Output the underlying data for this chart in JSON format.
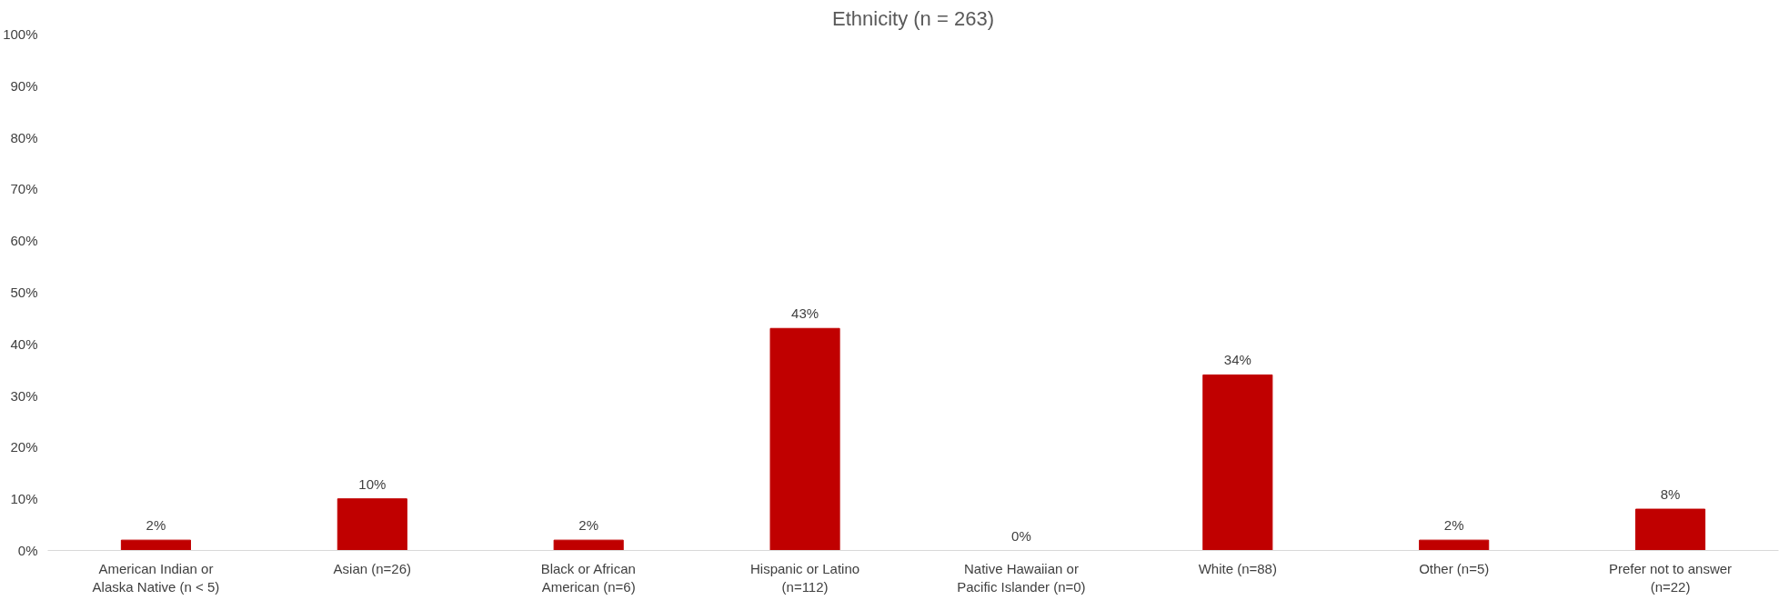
{
  "chart_data": {
    "type": "bar",
    "title": "Ethnicity (n = 263)",
    "categories": [
      "American Indian or Alaska Native (n < 5)",
      "Asian (n=26)",
      "Black or African American (n=6)",
      "Hispanic or Latino (n=112)",
      "Native Hawaiian or Pacific Islander (n=0)",
      "White (n=88)",
      "Other (n=5)",
      "Prefer not to answer (n=22)"
    ],
    "values": [
      2,
      10,
      2,
      43,
      0,
      34,
      2,
      8
    ],
    "value_labels": [
      "2%",
      "10%",
      "2%",
      "43%",
      "0%",
      "34%",
      "2%",
      "8%"
    ],
    "color": "#c00000",
    "ylim": [
      0,
      100
    ],
    "yticks": [
      {
        "value": 0,
        "label": "0%"
      },
      {
        "value": 10,
        "label": "10%"
      },
      {
        "value": 20,
        "label": "20%"
      },
      {
        "value": 30,
        "label": "30%"
      },
      {
        "value": 40,
        "label": "40%"
      },
      {
        "value": 50,
        "label": "50%"
      },
      {
        "value": 60,
        "label": "60%"
      },
      {
        "value": 70,
        "label": "70%"
      },
      {
        "value": 80,
        "label": "80%"
      },
      {
        "value": 90,
        "label": "90%"
      },
      {
        "value": 100,
        "label": "100%"
      }
    ],
    "grid": false
  }
}
